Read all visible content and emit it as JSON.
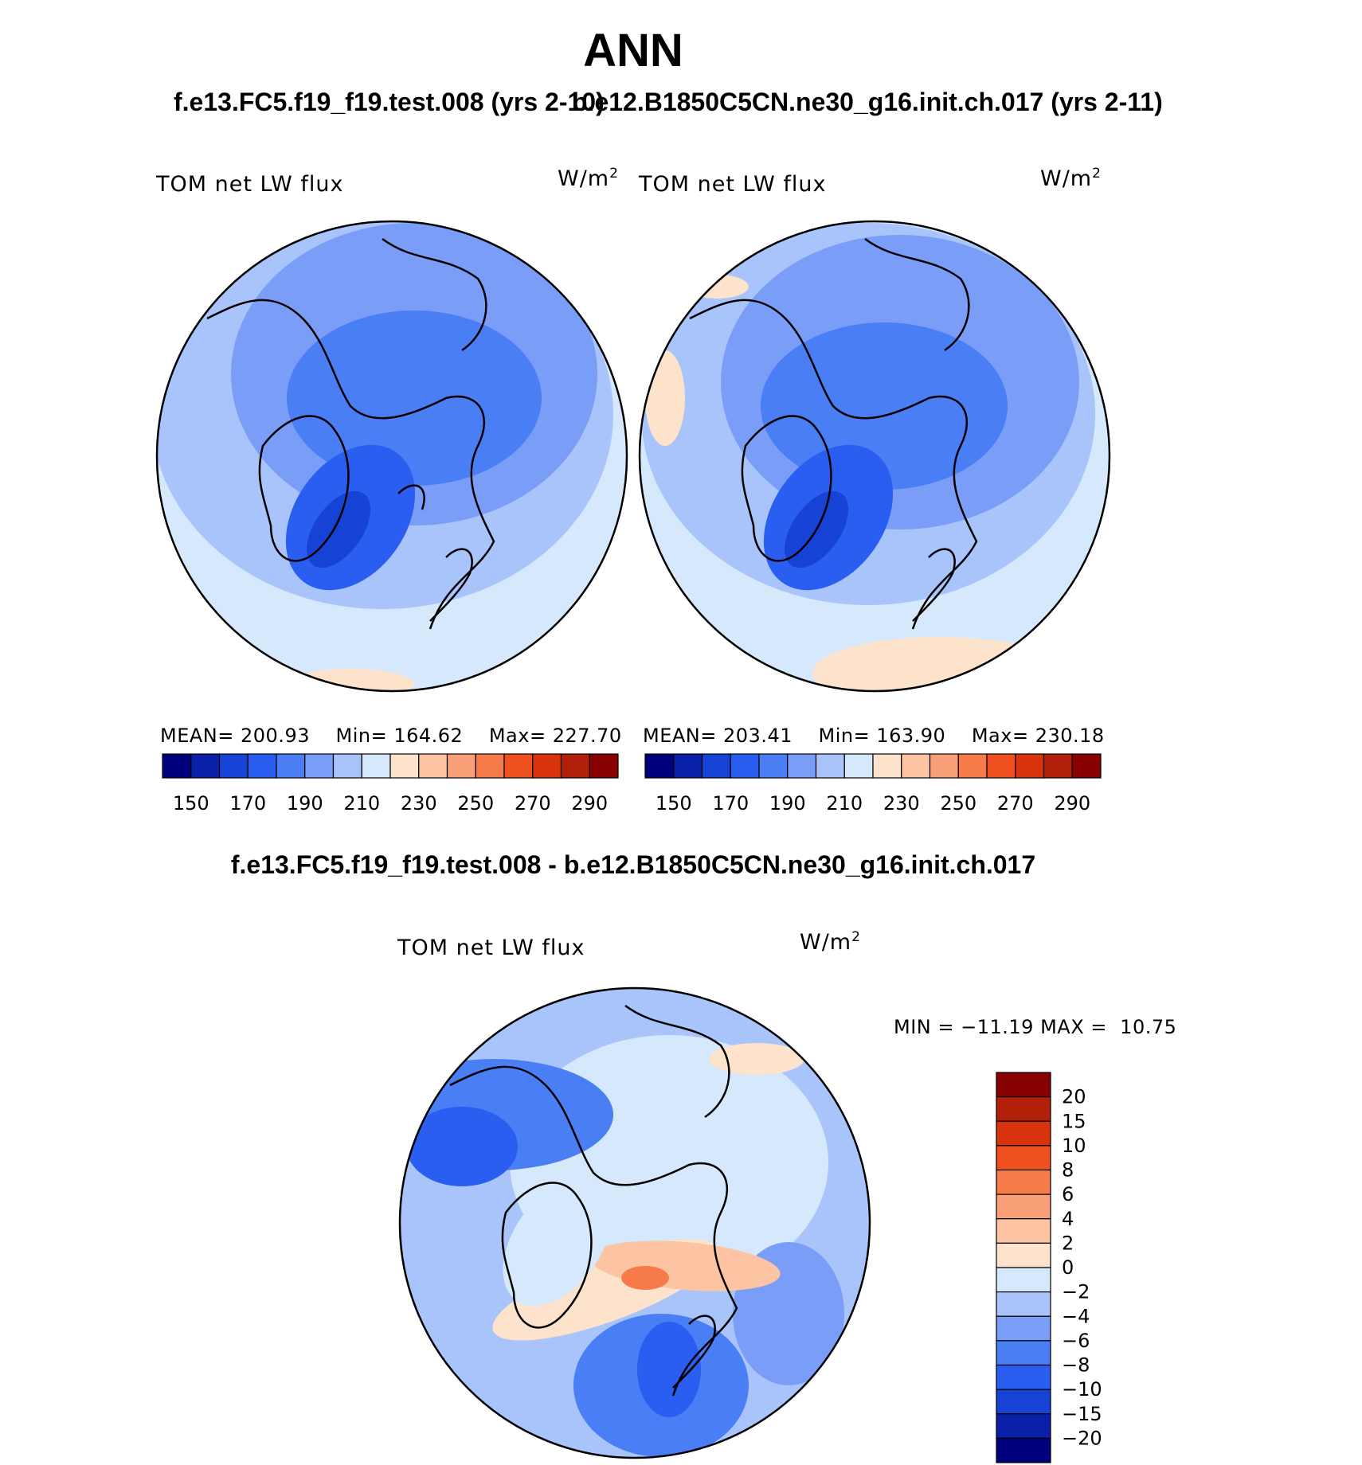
{
  "title": "ANN",
  "run_a_title": "f.e13.FC5.f19_f19.test.008 (yrs 2-10)",
  "run_b_title": "b.e12.B1850C5CN.ne30_g16.init.ch.017 (yrs 2-11)",
  "diff_title": "f.e13.FC5.f19_f19.test.008 - b.e12.B1850C5CN.ne30_g16.init.ch.017",
  "variable_label": "TOM net LW flux",
  "units_label": "W/m",
  "units_superscript": "2",
  "panel_a": {
    "mean_label": "MEAN=",
    "mean": "200.93",
    "min_label": "Min=",
    "min": "164.62",
    "max_label": "Max=",
    "max": "227.70"
  },
  "panel_b": {
    "mean_label": "MEAN=",
    "mean": "203.41",
    "min_label": "Min=",
    "min": "163.90",
    "max_label": "Max=",
    "max": "230.18"
  },
  "panel_diff": {
    "min_label": "MIN =",
    "min": "−11.19",
    "max_label": "MAX =",
    "max": "10.75"
  },
  "chart_data": [
    {
      "type": "heatmap",
      "title": "TOM net LW flux",
      "units": "W/m2",
      "colorbar_ticks": [
        "150",
        "170",
        "190",
        "210",
        "230",
        "250",
        "270",
        "290"
      ],
      "colorbar_colors": [
        "#00007f",
        "#0a20a8",
        "#1642d6",
        "#2a5ef0",
        "#4a7ef5",
        "#7a9ef8",
        "#a9c4fa",
        "#d6e8fb",
        "#fde2cc",
        "#fcc4a2",
        "#f9a079",
        "#f77a4a",
        "#f0501f",
        "#d8330c",
        "#b2200a",
        "#880000"
      ],
      "stats": {
        "mean": 200.93,
        "min": 164.62,
        "max": 227.7
      }
    },
    {
      "type": "heatmap",
      "title": "TOM net LW flux",
      "units": "W/m2",
      "colorbar_ticks": [
        "150",
        "170",
        "190",
        "210",
        "230",
        "250",
        "270",
        "290"
      ],
      "colorbar_colors": [
        "#00007f",
        "#0a20a8",
        "#1642d6",
        "#2a5ef0",
        "#4a7ef5",
        "#7a9ef8",
        "#a9c4fa",
        "#d6e8fb",
        "#fde2cc",
        "#fcc4a2",
        "#f9a079",
        "#f77a4a",
        "#f0501f",
        "#d8330c",
        "#b2200a",
        "#880000"
      ],
      "stats": {
        "mean": 203.41,
        "min": 163.9,
        "max": 230.18
      }
    },
    {
      "type": "heatmap",
      "title": "TOM net LW flux",
      "units": "W/m2",
      "colorbar_ticks": [
        "20",
        "15",
        "10",
        "8",
        "6",
        "4",
        "2",
        "0",
        "−2",
        "−4",
        "−6",
        "−8",
        "−10",
        "−15",
        "−20"
      ],
      "colorbar_colors": [
        "#880000",
        "#b2200a",
        "#d8330c",
        "#f0501f",
        "#f77a4a",
        "#f9a079",
        "#fcc4a2",
        "#fde2cc",
        "#d6e8fb",
        "#a9c4fa",
        "#7a9ef8",
        "#4a7ef5",
        "#2a5ef0",
        "#1642d6",
        "#0a20a8",
        "#00007f"
      ],
      "stats": {
        "min": -11.19,
        "max": 10.75
      }
    }
  ]
}
